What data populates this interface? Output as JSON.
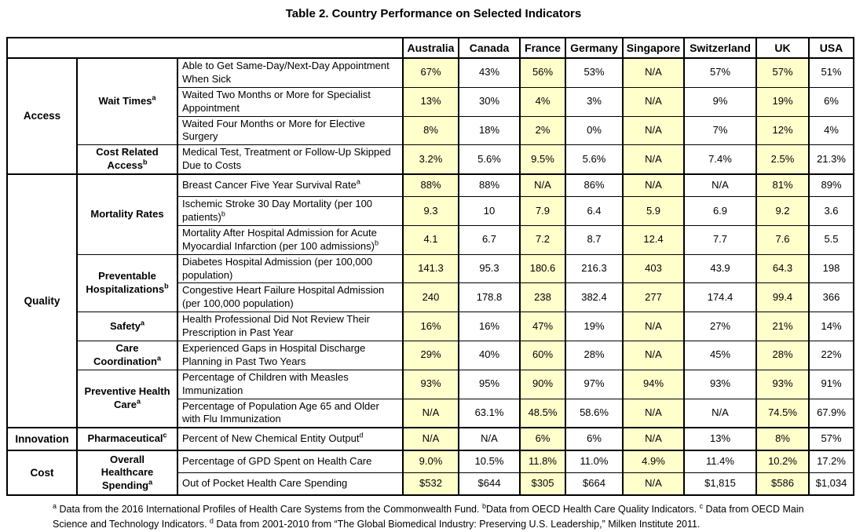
{
  "title": "Table 2. Country Performance on Selected Indicators",
  "colors": {
    "highlight_column": "#FFFFCC",
    "border": "#000000",
    "text": "#000000",
    "background": "#FFFFFF"
  },
  "table": {
    "countries": [
      "Australia",
      "Canada",
      "France",
      "Germany",
      "Singapore",
      "Switzerland",
      "UK",
      "USA"
    ],
    "highlighted_countries": [
      "Australia",
      "France",
      "Singapore",
      "UK"
    ],
    "sections": [
      {
        "category": "Access",
        "subcategories": [
          {
            "label": "Wait Times",
            "sup": "a",
            "rows": [
              {
                "indicator": "Able to Get Same-Day/Next-Day Appointment When Sick",
                "sup": "",
                "values": [
                  "67%",
                  "43%",
                  "56%",
                  "53%",
                  "N/A",
                  "57%",
                  "57%",
                  "51%"
                ]
              },
              {
                "indicator": "Waited Two Months or More for Specialist Appointment",
                "sup": "",
                "values": [
                  "13%",
                  "30%",
                  "4%",
                  "3%",
                  "N/A",
                  "9%",
                  "19%",
                  "6%"
                ]
              },
              {
                "indicator": "Waited Four Months or More for Elective Surgery",
                "sup": "",
                "values": [
                  "8%",
                  "18%",
                  "2%",
                  "0%",
                  "N/A",
                  "7%",
                  "12%",
                  "4%"
                ]
              }
            ]
          },
          {
            "label": "Cost Related Access",
            "sup": "b",
            "rows": [
              {
                "indicator": "Medical Test, Treatment or Follow-Up Skipped Due to Costs",
                "sup": "",
                "values": [
                  "3.2%",
                  "5.6%",
                  "9.5%",
                  "5.6%",
                  "N/A",
                  "7.4%",
                  "2.5%",
                  "21.3%"
                ]
              }
            ]
          }
        ]
      },
      {
        "category": "Quality",
        "subcategories": [
          {
            "label": "Mortality Rates",
            "sup": "",
            "rows": [
              {
                "indicator": "Breast Cancer Five Year Survival Rate",
                "sup": "a",
                "values": [
                  "88%",
                  "88%",
                  "N/A",
                  "86%",
                  "N/A",
                  "N/A",
                  "81%",
                  "89%"
                ]
              },
              {
                "indicator": "Ischemic Stroke 30 Day Mortality (per 100 patients)",
                "sup": "b",
                "values": [
                  "9.3",
                  "10",
                  "7.9",
                  "6.4",
                  "5.9",
                  "6.9",
                  "9.2",
                  "3.6"
                ]
              },
              {
                "indicator": "Mortality After Hospital Admission for Acute Myocardial Infarction (per 100 admissions)",
                "sup": "b",
                "values": [
                  "4.1",
                  "6.7",
                  "7.2",
                  "8.7",
                  "12.4",
                  "7.7",
                  "7.6",
                  "5.5"
                ]
              }
            ]
          },
          {
            "label": "Preventable Hospitalizations",
            "sup": "b",
            "rows": [
              {
                "indicator": "Diabetes Hospital Admission (per 100,000 population)",
                "sup": "",
                "values": [
                  "141.3",
                  "95.3",
                  "180.6",
                  "216.3",
                  "403",
                  "43.9",
                  "64.3",
                  "198"
                ]
              },
              {
                "indicator": "Congestive Heart Failure Hospital Admission (per 100,000 population)",
                "sup": "",
                "values": [
                  "240",
                  "178.8",
                  "238",
                  "382.4",
                  "277",
                  "174.4",
                  "99.4",
                  "366"
                ]
              }
            ]
          },
          {
            "label": "Safety",
            "sup": "a",
            "rows": [
              {
                "indicator": "Health Professional Did Not Review Their Prescription in Past Year",
                "sup": "",
                "values": [
                  "16%",
                  "16%",
                  "47%",
                  "19%",
                  "N/A",
                  "27%",
                  "21%",
                  "14%"
                ]
              }
            ]
          },
          {
            "label": "Care Coordination",
            "sup": "a",
            "rows": [
              {
                "indicator": "Experienced Gaps in Hospital Discharge Planning in Past Two Years",
                "sup": "",
                "values": [
                  "29%",
                  "40%",
                  "60%",
                  "28%",
                  "N/A",
                  "45%",
                  "28%",
                  "22%"
                ]
              }
            ]
          },
          {
            "label": "Preventive Health Care",
            "sup": "a",
            "rows": [
              {
                "indicator": "Percentage of Children with Measles Immunization",
                "sup": "",
                "values": [
                  "93%",
                  "95%",
                  "90%",
                  "97%",
                  "94%",
                  "93%",
                  "93%",
                  "91%"
                ]
              },
              {
                "indicator": "Percentage of Population Age 65 and Older with Flu Immunization",
                "sup": "",
                "values": [
                  "N/A",
                  "63.1%",
                  "48.5%",
                  "58.6%",
                  "N/A",
                  "N/A",
                  "74.5%",
                  "67.9%"
                ]
              }
            ]
          }
        ]
      },
      {
        "category": "Innovation",
        "subcategories": [
          {
            "label": "Pharmaceutical",
            "sup": "c",
            "rows": [
              {
                "indicator": "Percent of New Chemical Entity Output",
                "sup": "d",
                "values": [
                  "N/A",
                  "N/A",
                  "6%",
                  "6%",
                  "N/A",
                  "13%",
                  "8%",
                  "57%"
                ]
              }
            ]
          }
        ]
      },
      {
        "category": "Cost",
        "subcategories": [
          {
            "label": "Overall Healthcare Spending",
            "sup": "a",
            "rows": [
              {
                "indicator": "Percentage of GPD Spent on Health Care",
                "sup": "",
                "values": [
                  "9.0%",
                  "10.5%",
                  "11.8%",
                  "11.0%",
                  "4.9%",
                  "11.4%",
                  "10.2%",
                  "17.2%"
                ]
              },
              {
                "indicator": "Out of Pocket Health Care Spending",
                "sup": "",
                "values": [
                  "$532",
                  "$644",
                  "$305",
                  "$664",
                  "N/A",
                  "$1,815",
                  "$586",
                  "$1,034"
                ]
              }
            ]
          }
        ]
      }
    ]
  },
  "footnotes": [
    {
      "sup": "a",
      "text": " Data from the 2016 International Profiles of Health Care Systems from the Commonwealth Fund. "
    },
    {
      "sup": "b",
      "text": "Data from OECD Health Care Quality Indicators. "
    },
    {
      "sup": "c",
      "text": " Data from OECD Main Science and Technology Indicators. "
    },
    {
      "sup": "d",
      "text": " Data from 2001-2010 from “The Global Biomedical Industry: Preserving U.S. Leadership,” Milken Institute 2011."
    }
  ]
}
